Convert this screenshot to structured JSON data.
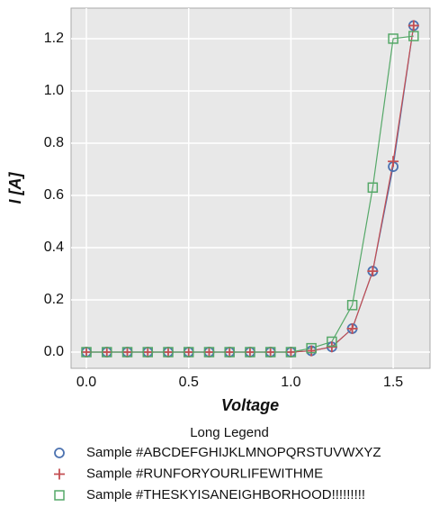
{
  "chart_data": {
    "type": "line",
    "x_label": "Voltage",
    "y_label": "I [A]",
    "x": [
      0.0,
      0.1,
      0.2,
      0.3,
      0.4,
      0.5,
      0.6,
      0.7,
      0.8,
      0.9,
      1.0,
      1.1,
      1.2,
      1.3,
      1.4,
      1.5,
      1.6
    ],
    "series": [
      {
        "name": "Sample #ABCDEFGHIJKLMNOPQRSTUVWXYZ",
        "color": "#4c72b0",
        "marker": "circle",
        "values": [
          0,
          0,
          0,
          0,
          0,
          0,
          0,
          0,
          0,
          0,
          0,
          0.005,
          0.02,
          0.09,
          0.31,
          0.71,
          1.25
        ]
      },
      {
        "name": "Sample #RUNFORYOURLIFEWITHME",
        "color": "#c44e52",
        "marker": "plus",
        "values": [
          0,
          0,
          0,
          0,
          0,
          0,
          0,
          0,
          0,
          0,
          0,
          0.005,
          0.02,
          0.09,
          0.31,
          0.73,
          1.25
        ]
      },
      {
        "name": "Sample #THESKYISANEIGHBORHOOD!!!!!!!!!",
        "color": "#55a868",
        "marker": "square",
        "values": [
          0,
          0,
          0,
          0,
          0,
          0,
          0,
          0,
          0,
          0,
          0,
          0.015,
          0.04,
          0.18,
          0.63,
          1.2,
          1.21
        ]
      }
    ],
    "xlim": [
      -0.075,
      1.68
    ],
    "ylim": [
      -0.062,
      1.317
    ],
    "xticks": [
      {
        "value": 0,
        "label": "0.0"
      },
      0.5,
      {
        "value": 1,
        "label": "1.0"
      },
      1.5
    ],
    "yticks": [
      {
        "value": 0,
        "label": "0.0"
      },
      0.2,
      0.4,
      0.6,
      0.8,
      {
        "value": 1,
        "label": "1.0"
      },
      1.2
    ],
    "grid": true,
    "legend_title": "Long Legend",
    "legend_position": "below"
  }
}
